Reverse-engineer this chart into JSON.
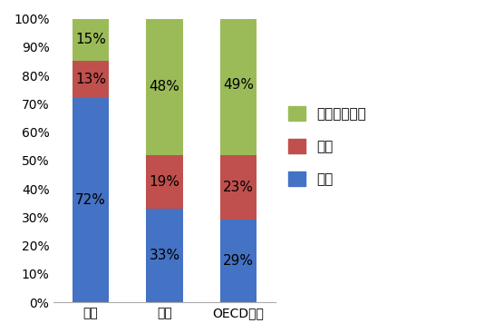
{
  "categories": [
    "日本",
    "米国",
    "OECD欧州"
  ],
  "series": [
    {
      "label": "発電",
      "values": [
        72,
        33,
        29
      ],
      "color": "#4472C4"
    },
    {
      "label": "産業",
      "values": [
        13,
        19,
        23
      ],
      "color": "#C0504D"
    },
    {
      "label": "民生・その他",
      "values": [
        15,
        48,
        49
      ],
      "color": "#9BBB59"
    }
  ],
  "ylim": [
    0,
    100
  ],
  "yticks": [
    0,
    10,
    20,
    30,
    40,
    50,
    60,
    70,
    80,
    90,
    100
  ],
  "ytick_labels": [
    "0%",
    "10%",
    "20%",
    "30%",
    "40%",
    "50%",
    "60%",
    "70%",
    "80%",
    "90%",
    "100%"
  ],
  "bar_width": 0.5,
  "background_color": "#ffffff",
  "label_fontsize": 11,
  "tick_fontsize": 10,
  "legend_fontsize": 11
}
